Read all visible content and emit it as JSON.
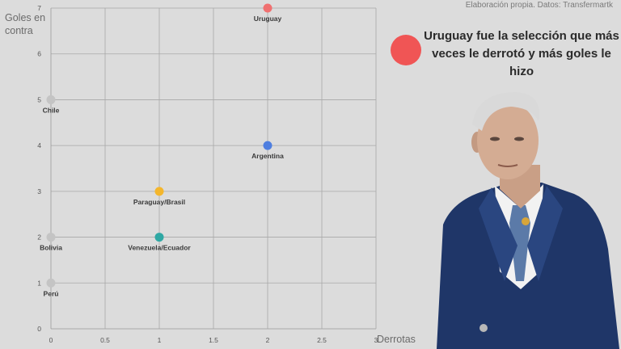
{
  "source": "Elaboración propia. Datos: Transfermartk",
  "callout": {
    "text": "Uruguay fue la selección que más veces le derrotó y más goles le hizo",
    "dot_color": "#f05555"
  },
  "chart_data": {
    "type": "scatter",
    "title": "",
    "xlabel": "Derrotas",
    "ylabel": "Goles en contra",
    "xlim": [
      0,
      3
    ],
    "ylim": [
      0,
      7
    ],
    "x_ticks": [
      "0",
      "0.5",
      "1",
      "1.5",
      "2",
      "2.5",
      "3"
    ],
    "y_ticks": [
      "0",
      "1",
      "2",
      "3",
      "4",
      "5",
      "6",
      "7"
    ],
    "grid": true,
    "points": [
      {
        "label": "Uruguay",
        "x": 2,
        "y": 7,
        "color": "#f07070"
      },
      {
        "label": "Argentina",
        "x": 2,
        "y": 4,
        "color": "#4f7fe0"
      },
      {
        "label": "Paraguay/Brasil",
        "x": 1,
        "y": 3,
        "color": "#f4b62c"
      },
      {
        "label": "Venezuela/Ecuador",
        "x": 1,
        "y": 2,
        "color": "#2fa8a4"
      },
      {
        "label": "Chile",
        "x": 0,
        "y": 5,
        "color": "#c4c4c4"
      },
      {
        "label": "Bolivia",
        "x": 0,
        "y": 2,
        "color": "#c4c4c4"
      },
      {
        "label": "Perú",
        "x": 0,
        "y": 1,
        "color": "#c4c4c4"
      }
    ]
  }
}
